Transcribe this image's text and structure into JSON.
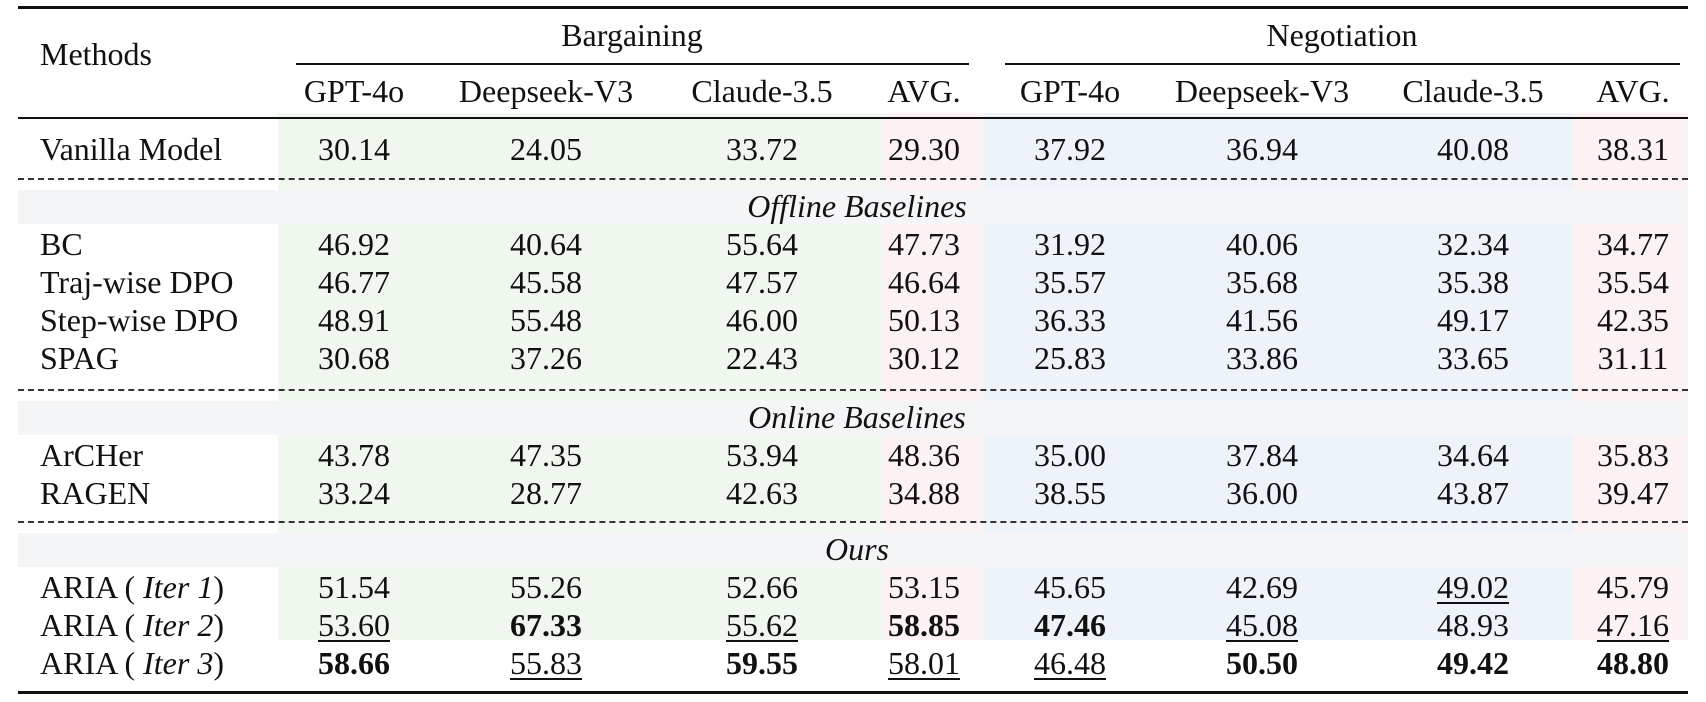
{
  "header": {
    "methods_label": "Methods",
    "groups": [
      "Bargaining",
      "Negotiation"
    ],
    "columns": [
      "GPT-4o",
      "Deepseek-V3",
      "Claude-3.5",
      "AVG.",
      "GPT-4o",
      "Deepseek-V3",
      "Claude-3.5",
      "AVG."
    ]
  },
  "sections": [
    "Offline Baselines",
    "Online Baselines",
    "Ours"
  ],
  "rows": [
    {
      "name": "Vanilla Model",
      "values": [
        "30.14",
        "24.05",
        "33.72",
        "29.30",
        "37.92",
        "36.94",
        "40.08",
        "38.31"
      ]
    },
    {
      "name": "BC",
      "values": [
        "46.92",
        "40.64",
        "55.64",
        "47.73",
        "31.92",
        "40.06",
        "32.34",
        "34.77"
      ]
    },
    {
      "name": "Traj-wise DPO",
      "values": [
        "46.77",
        "45.58",
        "47.57",
        "46.64",
        "35.57",
        "35.68",
        "35.38",
        "35.54"
      ]
    },
    {
      "name": "Step-wise DPO",
      "values": [
        "48.91",
        "55.48",
        "46.00",
        "50.13",
        "36.33",
        "41.56",
        "49.17",
        "42.35"
      ]
    },
    {
      "name": "SPAG",
      "values": [
        "30.68",
        "37.26",
        "22.43",
        "30.12",
        "25.83",
        "33.86",
        "33.65",
        "31.11"
      ]
    },
    {
      "name": "ArCHer",
      "values": [
        "43.78",
        "47.35",
        "53.94",
        "48.36",
        "35.00",
        "37.84",
        "34.64",
        "35.83"
      ]
    },
    {
      "name": "RAGEN",
      "values": [
        "33.24",
        "28.77",
        "42.63",
        "34.88",
        "38.55",
        "36.00",
        "43.87",
        "39.47"
      ]
    },
    {
      "name_prefix": "ARIA ( ",
      "name_iter": "Iter 1",
      "name_suffix": ")",
      "values": [
        "51.54",
        "55.26",
        "52.66",
        "53.15",
        "45.65",
        "42.69",
        "49.02",
        "45.79"
      ]
    },
    {
      "name_prefix": "ARIA ( ",
      "name_iter": "Iter 2",
      "name_suffix": ")",
      "values": [
        "53.60",
        "67.33",
        "55.62",
        "58.85",
        "47.46",
        "45.08",
        "48.93",
        "47.16"
      ]
    },
    {
      "name_prefix": "ARIA ( ",
      "name_iter": "Iter 3",
      "name_suffix": ")",
      "values": [
        "58.66",
        "55.83",
        "59.55",
        "58.01",
        "46.48",
        "50.50",
        "49.42",
        "48.80"
      ]
    }
  ],
  "colors": {
    "bargaining_band": "#f0f7ee",
    "bargaining_avg_band": "#fcf1f3",
    "negotiation_band": "#eef2f9",
    "negotiation_avg_band": "#fcf1f3",
    "section_band": "#f4f5f7"
  }
}
